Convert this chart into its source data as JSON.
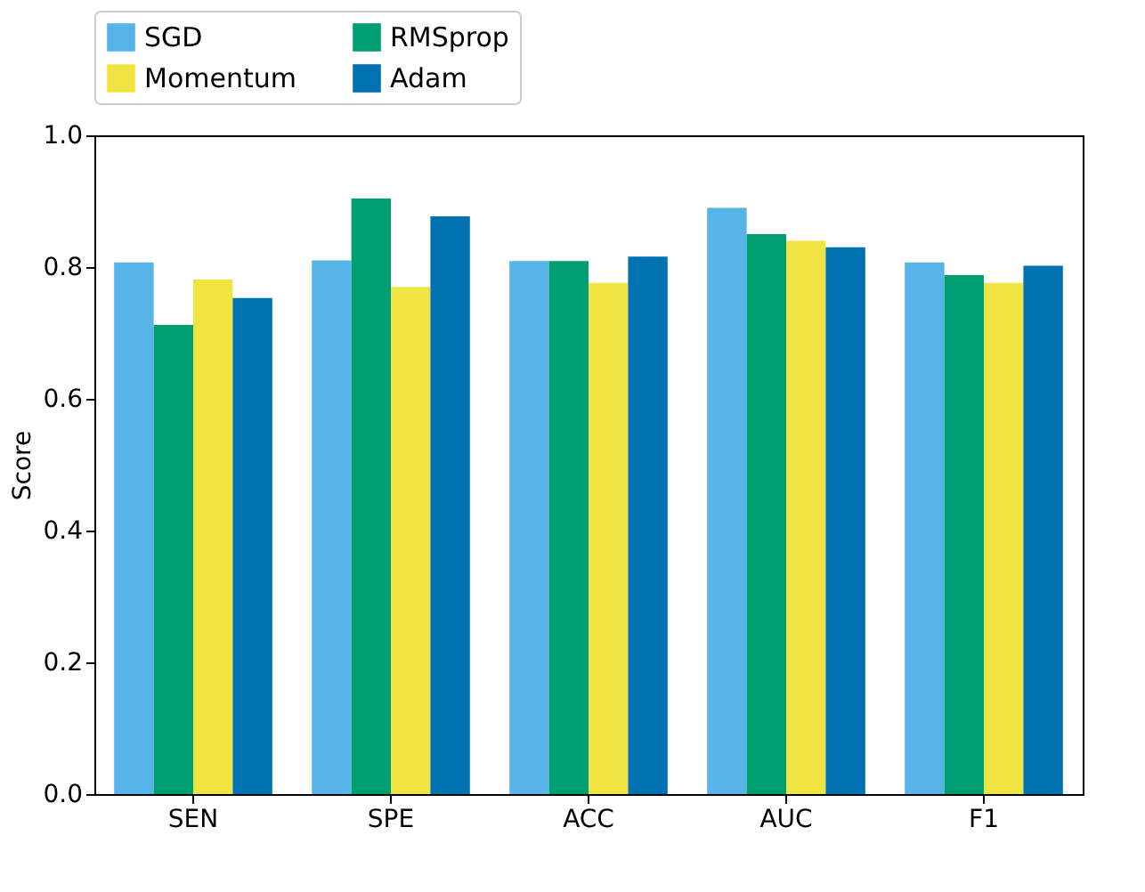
{
  "chart_data": {
    "type": "bar",
    "ylabel": "Score",
    "categories": [
      "SEN",
      "SPE",
      "ACC",
      "AUC",
      "F1"
    ],
    "series": [
      {
        "name": "SGD",
        "color": "#56b4e9",
        "values": [
          0.807,
          0.81,
          0.809,
          0.89,
          0.807
        ]
      },
      {
        "name": "RMSprop",
        "color": "#009e73",
        "values": [
          0.712,
          0.904,
          0.809,
          0.85,
          0.788
        ]
      },
      {
        "name": "Momentum",
        "color": "#f0e442",
        "values": [
          0.781,
          0.77,
          0.776,
          0.84,
          0.776
        ]
      },
      {
        "name": "Adam",
        "color": "#0072b2",
        "values": [
          0.753,
          0.877,
          0.816,
          0.83,
          0.802
        ]
      }
    ],
    "ylim": [
      0,
      1
    ],
    "yticks": [
      {
        "value": 0,
        "label": "0.0"
      },
      {
        "value": 0.2,
        "label": "0.2"
      },
      {
        "value": 0.4,
        "label": "0.4"
      },
      {
        "value": 0.6,
        "label": "0.6"
      },
      {
        "value": 0.8,
        "label": "0.8"
      },
      {
        "value": 1,
        "label": "1.0"
      }
    ],
    "grid": false,
    "legend": "top"
  }
}
